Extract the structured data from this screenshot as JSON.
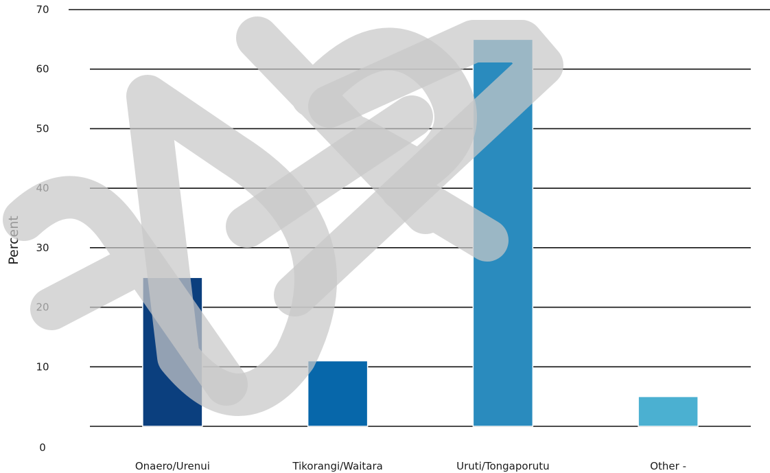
{
  "chart_data": {
    "type": "bar",
    "categories": [
      "Onaero/Urenui",
      "Tikorangi/Waitara",
      "Uruti/Tongaporutu",
      "Other -"
    ],
    "series": [
      {
        "values": [
          25,
          11,
          65,
          5
        ]
      }
    ],
    "colors": [
      "#0b3f7e",
      "#0767aa",
      "#2a8bbe",
      "#4bb0d1"
    ],
    "ylabel": "Percent",
    "xlabel": "",
    "title": "",
    "ylim": [
      0,
      70
    ],
    "yticks": [
      0,
      10,
      20,
      30,
      40,
      50,
      60,
      70
    ],
    "grid": true,
    "legend": "none",
    "watermark": "DRAFT"
  }
}
